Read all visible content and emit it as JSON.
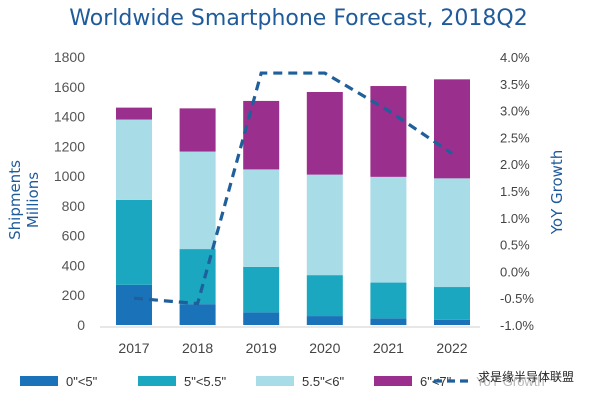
{
  "chart_data": {
    "type": "bar",
    "title": "Worldwide Smartphone Forecast, 2018Q2",
    "categories": [
      "2017",
      "2018",
      "2019",
      "2020",
      "2021",
      "2022"
    ],
    "series": [
      {
        "name": "0\"<5\"",
        "color": "#1a73b8",
        "values": [
          270,
          140,
          85,
          60,
          45,
          35
        ]
      },
      {
        "name": "5\"<5.5\"",
        "color": "#1aa7bf",
        "values": [
          570,
          370,
          305,
          275,
          240,
          220
        ]
      },
      {
        "name": "5.5\"<6\"",
        "color": "#a8dde7",
        "values": [
          540,
          655,
          655,
          675,
          710,
          730
        ]
      },
      {
        "name": "6\"<7\"",
        "color": "#9b2f8d",
        "values": [
          80,
          290,
          460,
          555,
          610,
          665
        ]
      }
    ],
    "line_series": {
      "name": "YoY Growth",
      "color": "#1f5f9b",
      "values": [
        -0.5,
        -0.6,
        3.7,
        3.7,
        3.0,
        2.2
      ]
    },
    "ylabel": "Shipments\nMillions",
    "ylim": [
      0,
      1800
    ],
    "yticks": [
      "0",
      "200",
      "400",
      "600",
      "800",
      "1000",
      "1200",
      "1400",
      "1600",
      "1800"
    ],
    "y2label": "YoY Growth",
    "y2lim": [
      -1.0,
      4.0
    ],
    "y2ticks": [
      "-1.0%",
      "-0.5%",
      "0.0%",
      "0.5%",
      "1.0%",
      "1.5%",
      "2.0%",
      "2.5%",
      "3.0%",
      "3.5%",
      "4.0%"
    ],
    "legend_position": "bottom",
    "grid": false
  },
  "watermark": "求是缘半导体联盟"
}
